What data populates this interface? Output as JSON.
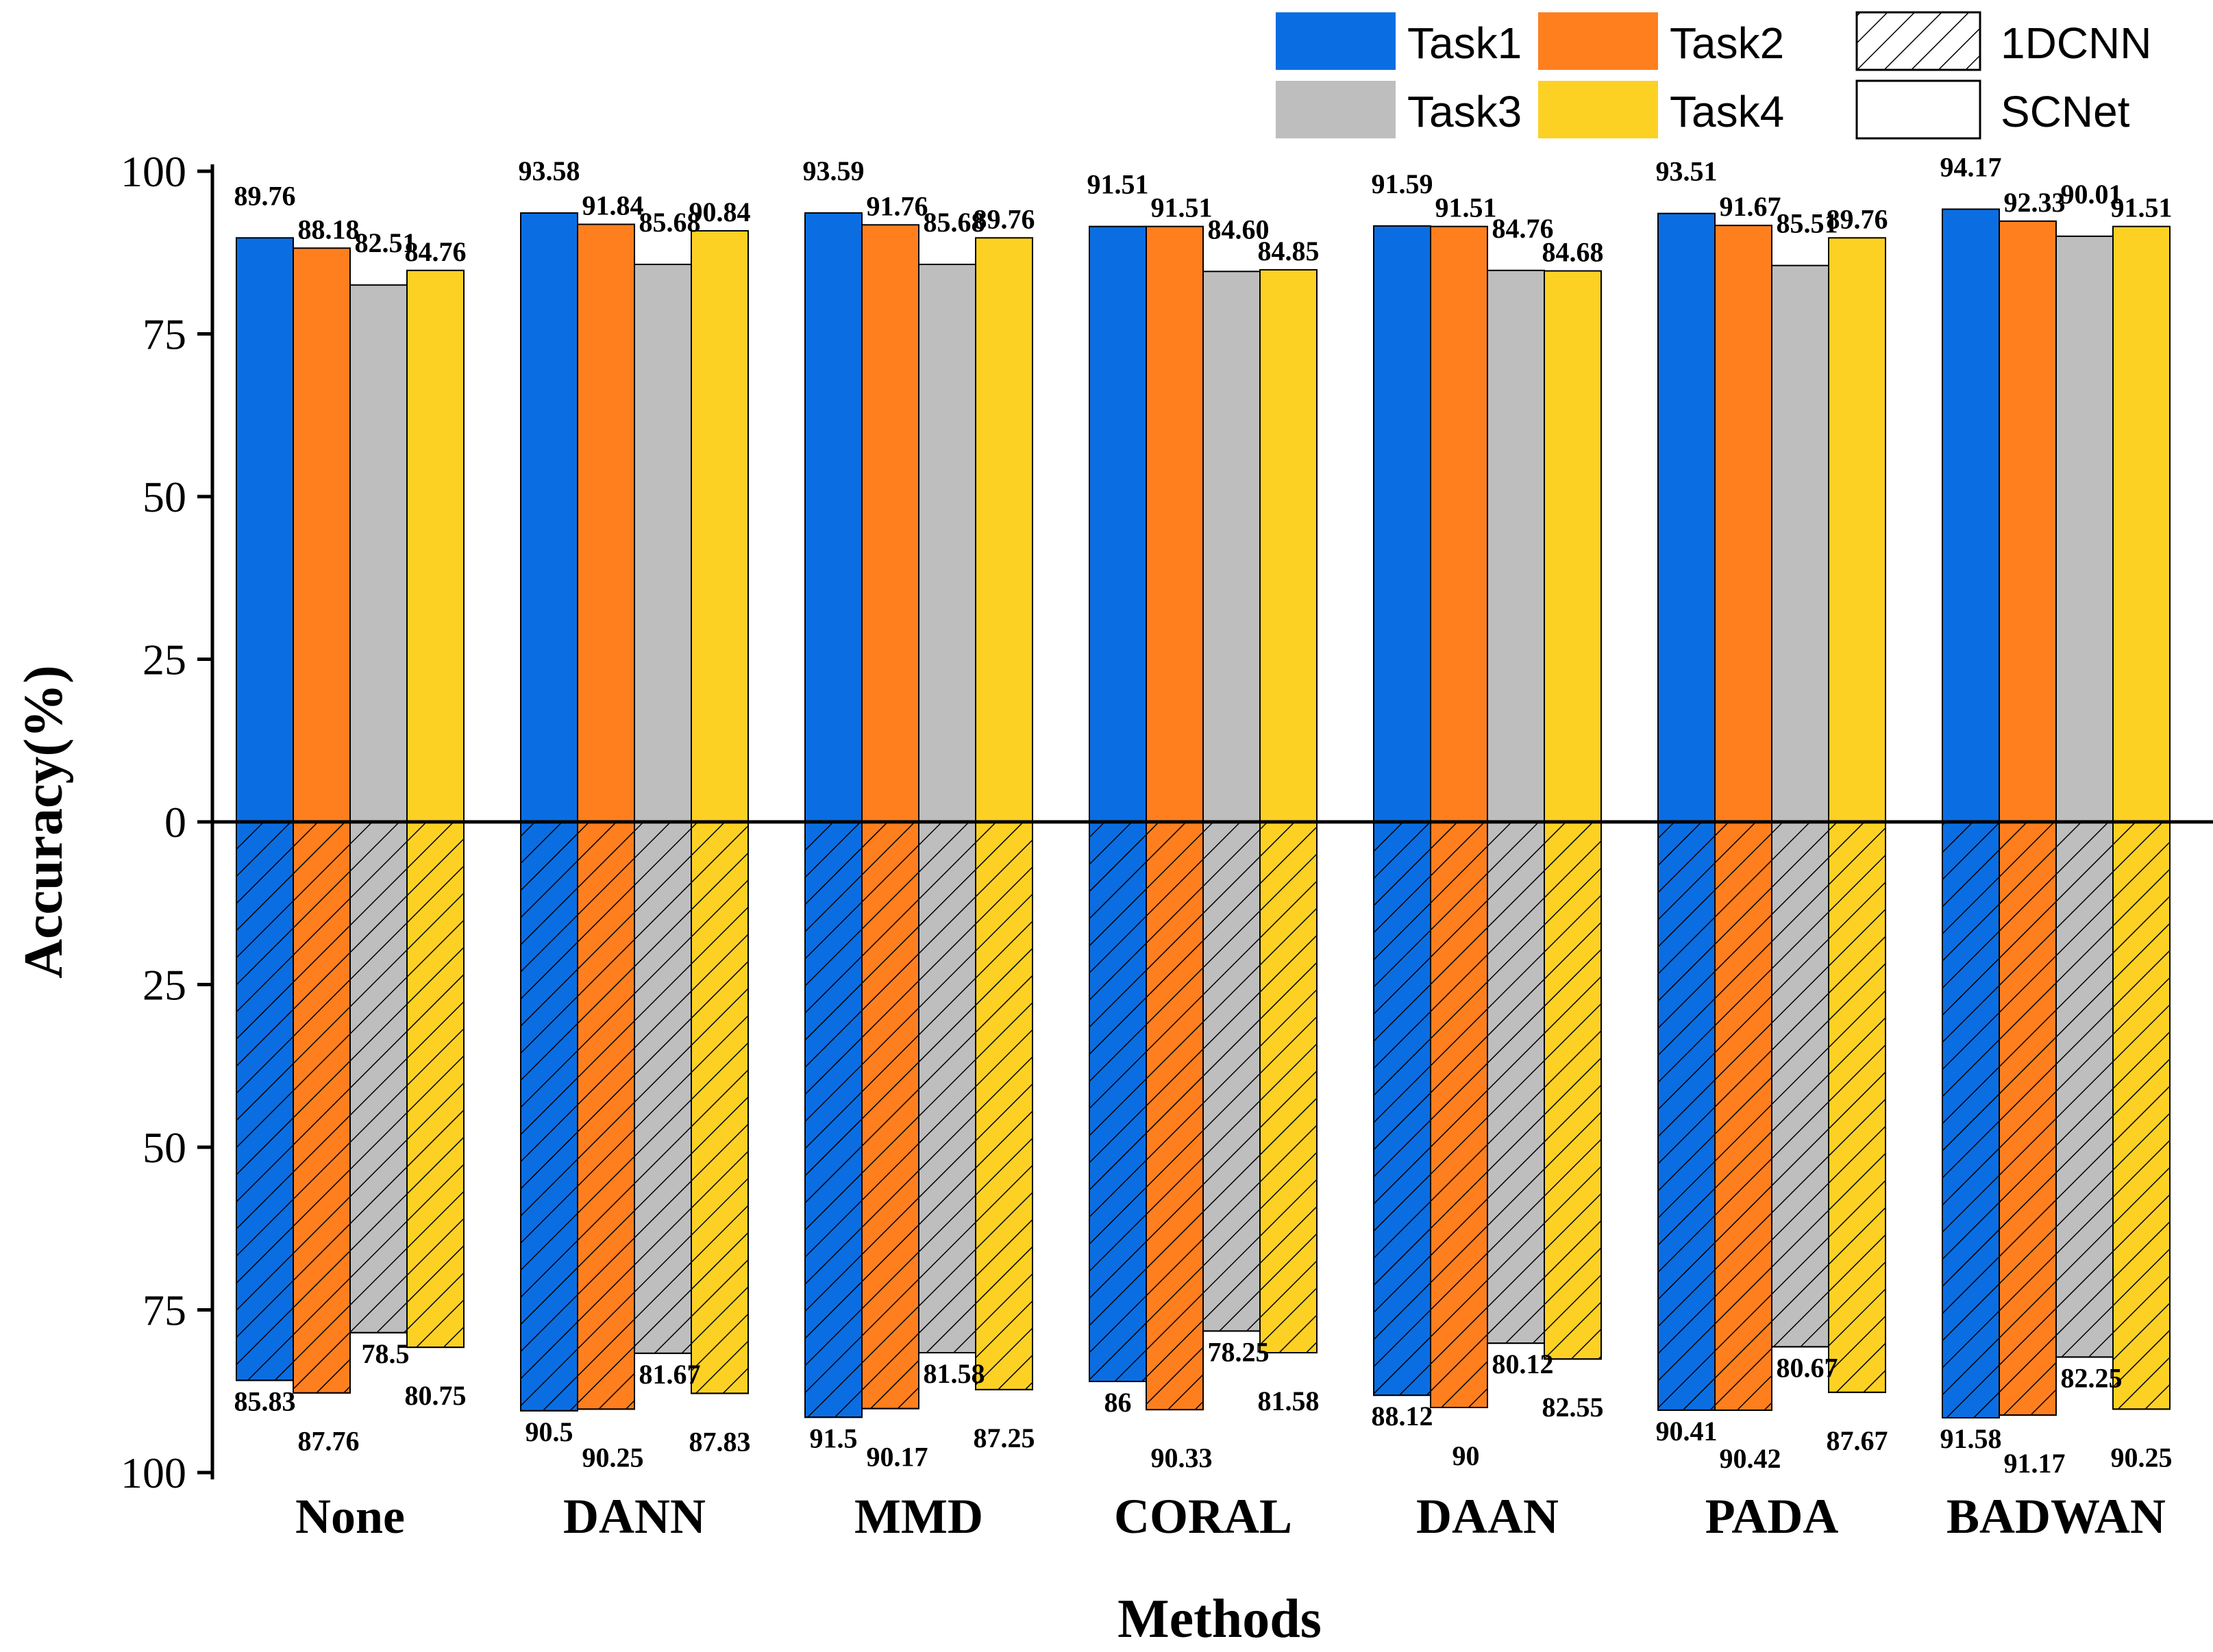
{
  "chart_data": {
    "type": "bar",
    "title": "",
    "xlabel": "Methods",
    "ylabel": "Accuracy(%)",
    "ylim": [
      -100,
      100
    ],
    "yticks": [
      100,
      75,
      50,
      25,
      0,
      25,
      50,
      75,
      100
    ],
    "categories": [
      "None",
      "DANN",
      "MMD",
      "CORAL",
      "DAAN",
      "PADA",
      "BADWAN"
    ],
    "tasks": [
      {
        "name": "Task1",
        "color": "#0a6ee2"
      },
      {
        "name": "Task2",
        "color": "#ff7f1e"
      },
      {
        "name": "Task3",
        "color": "#bebebe"
      },
      {
        "name": "Task4",
        "color": "#fdd124"
      }
    ],
    "models": [
      {
        "name": "SCNet",
        "direction": "up",
        "pattern": "none"
      },
      {
        "name": "1DCNN",
        "direction": "down",
        "pattern": "hatch"
      }
    ],
    "series": [
      {
        "name": "SCNet Task1",
        "values": [
          89.76,
          93.58,
          93.59,
          91.51,
          91.59,
          93.51,
          94.17
        ],
        "labels": [
          "89.76",
          "93.58",
          "93.59",
          "91.51",
          "91.59",
          "93.51",
          "94.17"
        ]
      },
      {
        "name": "SCNet Task2",
        "values": [
          88.18,
          91.84,
          91.76,
          91.51,
          91.51,
          91.67,
          92.33
        ],
        "labels": [
          "88.18",
          "91.84",
          "91.76",
          "91.51",
          "91.51",
          "91.67",
          "92.33"
        ]
      },
      {
        "name": "SCNet Task3",
        "values": [
          82.51,
          85.68,
          85.68,
          84.6,
          84.76,
          85.51,
          90.01
        ],
        "labels": [
          "82.51",
          "85.68",
          "85.68",
          "84.60",
          "84.76",
          "85.51",
          "90.01"
        ]
      },
      {
        "name": "SCNet Task4",
        "values": [
          84.76,
          90.84,
          89.76,
          84.85,
          84.68,
          89.76,
          91.51
        ],
        "labels": [
          "84.76",
          "90.84",
          "89.76",
          "84.85",
          "84.68",
          "89.76",
          "91.51"
        ]
      },
      {
        "name": "1DCNN Task1",
        "values": [
          85.83,
          90.5,
          91.5,
          86,
          88.12,
          90.41,
          91.58
        ],
        "labels": [
          "85.83",
          "90.5",
          "91.5",
          "86",
          "88.12",
          "90.41",
          "91.58"
        ]
      },
      {
        "name": "1DCNN Task2",
        "values": [
          87.76,
          90.25,
          90.17,
          90.33,
          90,
          90.42,
          91.17
        ],
        "labels": [
          "87.76",
          "90.25",
          "90.17",
          "90.33",
          "90",
          "90.42",
          "91.17"
        ]
      },
      {
        "name": "1DCNN Task3",
        "values": [
          78.5,
          81.67,
          81.58,
          78.25,
          80.12,
          80.67,
          82.25
        ],
        "labels": [
          "78.5",
          "81.67",
          "81.58",
          "78.25",
          "80.12",
          "80.67",
          "82.25"
        ]
      },
      {
        "name": "1DCNN Task4",
        "values": [
          80.75,
          87.83,
          87.25,
          81.58,
          82.55,
          87.67,
          90.25
        ],
        "labels": [
          "80.75",
          "87.83",
          "87.25",
          "81.58",
          "82.55",
          "87.67",
          "90.25"
        ]
      }
    ],
    "legend_position": "top-right",
    "grid": false
  }
}
